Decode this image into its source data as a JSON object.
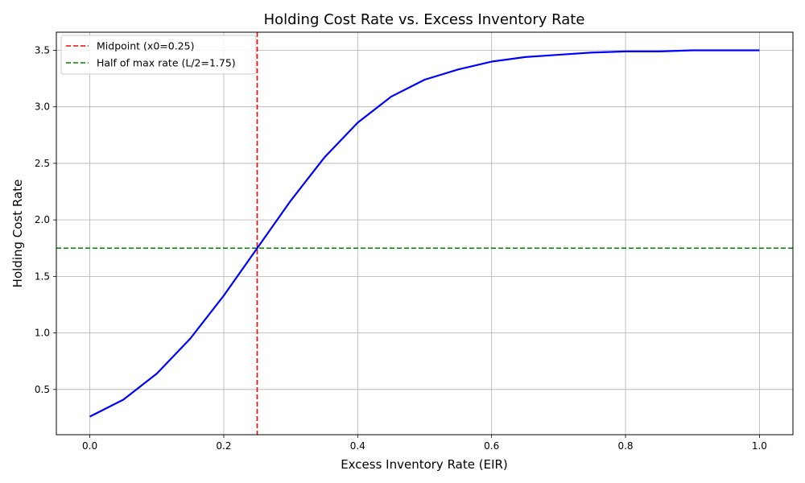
{
  "chart_data": {
    "type": "line",
    "title": "Holding Cost Rate vs. Excess Inventory Rate",
    "xlabel": "Excess Inventory Rate (EIR)",
    "ylabel": "Holding Cost Rate",
    "xlim": [
      -0.05,
      1.05
    ],
    "ylim": [
      0.1,
      3.66
    ],
    "x_ticks": [
      0.0,
      0.2,
      0.4,
      0.6,
      0.8,
      1.0
    ],
    "x_tick_labels": [
      "0.0",
      "0.2",
      "0.4",
      "0.6",
      "0.8",
      "1.0"
    ],
    "y_ticks": [
      0.5,
      1.0,
      1.5,
      2.0,
      2.5,
      3.0,
      3.5
    ],
    "y_tick_labels": [
      "0.5",
      "1.0",
      "1.5",
      "2.0",
      "2.5",
      "3.0",
      "3.5"
    ],
    "grid": true,
    "legend_position": "top-left",
    "series": [
      {
        "color": "#0000ff",
        "x": [
          0.0,
          0.05,
          0.1,
          0.15,
          0.2,
          0.25,
          0.3,
          0.35,
          0.4,
          0.45,
          0.5,
          0.55,
          0.6,
          0.65,
          0.7,
          0.75,
          0.8,
          0.85,
          0.9,
          0.95,
          1.0
        ],
        "y": [
          0.26,
          0.41,
          0.64,
          0.95,
          1.33,
          1.75,
          2.17,
          2.55,
          2.86,
          3.09,
          3.24,
          3.33,
          3.4,
          3.44,
          3.46,
          3.48,
          3.49,
          3.49,
          3.5,
          3.5,
          3.5
        ]
      }
    ],
    "reference_lines": [
      {
        "orientation": "vertical",
        "value": 0.25,
        "color": "#ff0000",
        "label": "Midpoint (x0=0.25)"
      },
      {
        "orientation": "horizontal",
        "value": 1.75,
        "color": "#008000",
        "label": "Half of max rate (L/2=1.75)"
      }
    ]
  }
}
